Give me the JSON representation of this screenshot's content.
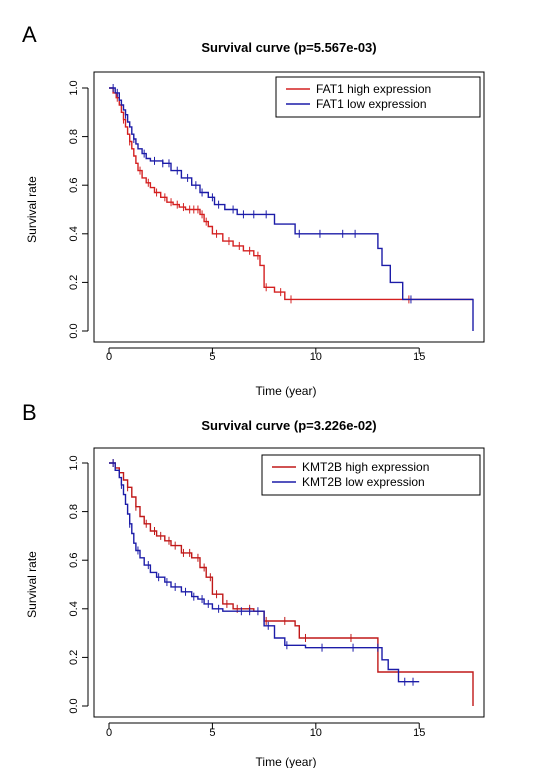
{
  "chart_data": [
    {
      "type": "line",
      "panel": "A",
      "title": "Survival curve (p=5.567e-03)",
      "xlabel": "Time (year)",
      "ylabel": "Survival rate",
      "xlim": [
        0,
        17.6
      ],
      "ylim": [
        0,
        1.0
      ],
      "xticks": [
        0,
        5,
        10,
        15
      ],
      "yticks": [
        0.0,
        0.2,
        0.4,
        0.6,
        0.8,
        1.0
      ],
      "xtick_labels": [
        "0",
        "5",
        "10",
        "15"
      ],
      "ytick_labels": [
        "0.0",
        "0.2",
        "0.4",
        "0.6",
        "0.8",
        "1.0"
      ],
      "legend_position": "top-right",
      "series": [
        {
          "name": "FAT1 high expression",
          "color": "#d42020",
          "x": [
            0,
            0.2,
            0.35,
            0.5,
            0.6,
            0.7,
            0.8,
            0.9,
            1.0,
            1.1,
            1.2,
            1.3,
            1.4,
            1.6,
            1.8,
            2.0,
            2.2,
            2.5,
            2.8,
            3.1,
            3.4,
            3.7,
            4.0,
            4.4,
            4.6,
            4.8,
            5.0,
            5.5,
            6.0,
            6.5,
            7.0,
            7.3,
            7.5,
            8.0,
            8.5,
            17.6
          ],
          "y": [
            1.0,
            0.98,
            0.96,
            0.93,
            0.9,
            0.87,
            0.84,
            0.81,
            0.78,
            0.75,
            0.72,
            0.69,
            0.66,
            0.63,
            0.61,
            0.59,
            0.57,
            0.55,
            0.53,
            0.52,
            0.51,
            0.5,
            0.5,
            0.48,
            0.45,
            0.43,
            0.4,
            0.37,
            0.35,
            0.33,
            0.31,
            0.27,
            0.18,
            0.16,
            0.13,
            0.13
          ],
          "censor_x": [
            0.4,
            0.7,
            1.0,
            1.5,
            1.9,
            2.3,
            2.7,
            3.0,
            3.3,
            3.6,
            3.9,
            4.1,
            4.3,
            4.5,
            4.7,
            5.2,
            5.8,
            6.3,
            6.8,
            7.2,
            7.6,
            8.3,
            8.8,
            14.5
          ]
        },
        {
          "name": "FAT1 low expression",
          "color": "#1c1ca8",
          "x": [
            0,
            0.3,
            0.5,
            0.6,
            0.7,
            0.8,
            0.9,
            1.0,
            1.1,
            1.2,
            1.3,
            1.4,
            1.6,
            1.8,
            2.0,
            2.3,
            2.6,
            3.0,
            3.5,
            4.0,
            4.4,
            4.8,
            5.1,
            5.6,
            6.2,
            6.6,
            7.5,
            8.0,
            9.0,
            9.5,
            12.8,
            13.0,
            13.2,
            13.6,
            14.2,
            17.6
          ],
          "y": [
            1.0,
            0.98,
            0.95,
            0.93,
            0.91,
            0.89,
            0.86,
            0.84,
            0.81,
            0.79,
            0.77,
            0.75,
            0.73,
            0.71,
            0.7,
            0.7,
            0.69,
            0.66,
            0.63,
            0.6,
            0.57,
            0.55,
            0.52,
            0.5,
            0.48,
            0.48,
            0.48,
            0.44,
            0.4,
            0.4,
            0.4,
            0.34,
            0.27,
            0.2,
            0.13,
            0.0
          ],
          "censor_x": [
            0.2,
            0.4,
            0.8,
            1.2,
            1.7,
            2.2,
            2.6,
            2.9,
            3.3,
            3.8,
            4.2,
            4.5,
            5.0,
            5.3,
            6.0,
            6.5,
            7.0,
            7.6,
            9.2,
            10.2,
            11.3,
            11.9,
            14.6
          ]
        }
      ]
    },
    {
      "type": "line",
      "panel": "B",
      "title": "Survival curve (p=3.226e-02)",
      "xlabel": "Time (year)",
      "ylabel": "Survival rate",
      "xlim": [
        0,
        17.6
      ],
      "ylim": [
        0,
        1.0
      ],
      "xticks": [
        0,
        5,
        10,
        15
      ],
      "yticks": [
        0.0,
        0.2,
        0.4,
        0.6,
        0.8,
        1.0
      ],
      "xtick_labels": [
        "0",
        "5",
        "10",
        "15"
      ],
      "ytick_labels": [
        "0.0",
        "0.2",
        "0.4",
        "0.6",
        "0.8",
        "1.0"
      ],
      "legend_position": "top-right",
      "series": [
        {
          "name": "KMT2B high expression",
          "color": "#c01818",
          "x": [
            0,
            0.3,
            0.5,
            0.7,
            0.9,
            1.1,
            1.3,
            1.5,
            1.7,
            2.0,
            2.3,
            2.7,
            3.0,
            3.5,
            4.0,
            4.4,
            4.7,
            5.0,
            5.5,
            6.0,
            7.0,
            7.5,
            9.0,
            9.2,
            12.8,
            13.0,
            13.5,
            17.5,
            17.6
          ],
          "y": [
            1.0,
            0.98,
            0.96,
            0.93,
            0.9,
            0.86,
            0.82,
            0.78,
            0.75,
            0.72,
            0.7,
            0.68,
            0.66,
            0.63,
            0.61,
            0.57,
            0.53,
            0.46,
            0.42,
            0.4,
            0.39,
            0.35,
            0.33,
            0.28,
            0.28,
            0.14,
            0.14,
            0.14,
            0.0
          ],
          "censor_x": [
            0.2,
            0.5,
            0.9,
            1.3,
            1.8,
            2.2,
            2.5,
            2.9,
            3.2,
            3.6,
            3.9,
            4.3,
            4.6,
            4.9,
            5.2,
            5.7,
            6.2,
            6.8,
            7.6,
            8.5,
            9.5,
            11.7
          ]
        },
        {
          "name": "KMT2B low expression",
          "color": "#1c1ca8",
          "x": [
            0,
            0.3,
            0.5,
            0.6,
            0.7,
            0.8,
            0.9,
            1.0,
            1.1,
            1.2,
            1.3,
            1.5,
            1.7,
            2.0,
            2.3,
            2.7,
            3.0,
            3.5,
            4.0,
            4.3,
            4.6,
            5.0,
            5.5,
            6.0,
            7.5,
            8.0,
            8.5,
            9.5,
            12.9,
            13.2,
            13.5,
            14.0,
            14.5,
            15.0
          ],
          "y": [
            1.0,
            0.97,
            0.94,
            0.91,
            0.87,
            0.83,
            0.79,
            0.75,
            0.71,
            0.67,
            0.64,
            0.61,
            0.58,
            0.55,
            0.53,
            0.51,
            0.49,
            0.47,
            0.45,
            0.44,
            0.42,
            0.4,
            0.39,
            0.39,
            0.33,
            0.28,
            0.25,
            0.24,
            0.24,
            0.19,
            0.15,
            0.1,
            0.1,
            0.1
          ],
          "censor_x": [
            0.2,
            0.6,
            1.0,
            1.4,
            1.9,
            2.4,
            2.8,
            3.2,
            3.7,
            4.1,
            4.5,
            4.8,
            5.3,
            6.4,
            6.8,
            7.2,
            7.7,
            8.6,
            10.3,
            11.8,
            13.0,
            14.3,
            14.7
          ]
        }
      ]
    }
  ]
}
